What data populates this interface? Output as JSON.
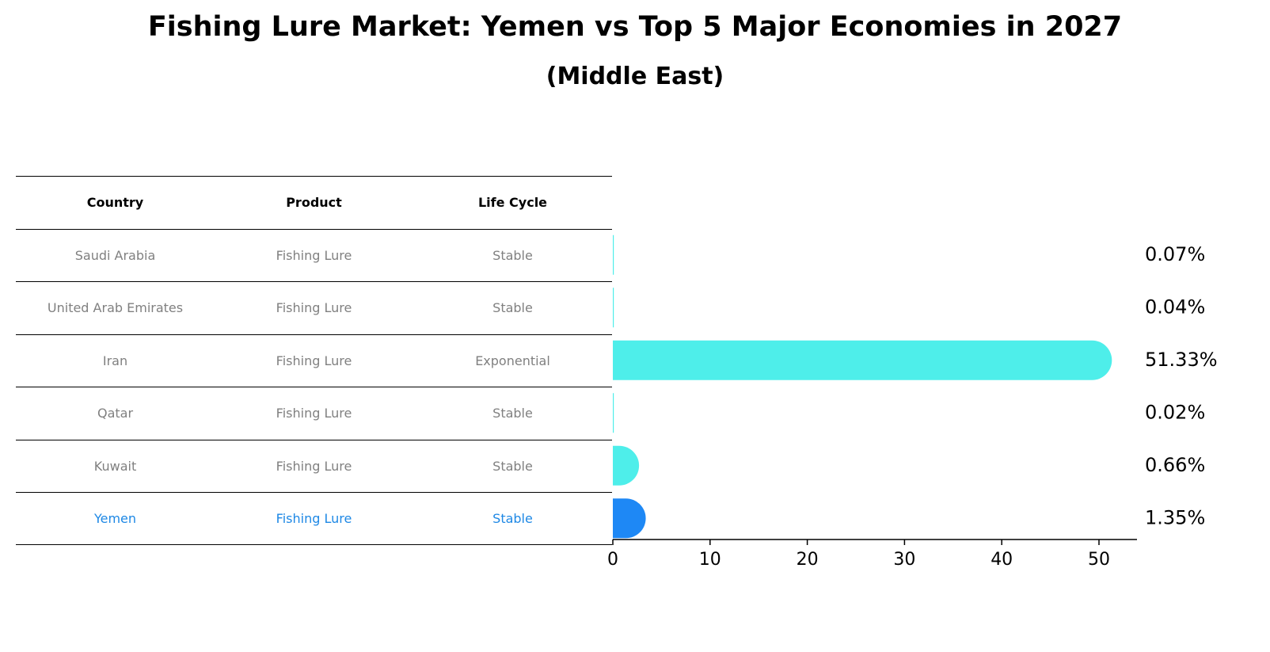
{
  "title": "Fishing Lure Market: Yemen vs Top 5 Major Economies in 2027",
  "subtitle": "(Middle East)",
  "table": {
    "headers": [
      "Country",
      "Product",
      "Life Cycle"
    ],
    "rows": [
      [
        "Saudi Arabia",
        "Fishing Lure",
        "Stable"
      ],
      [
        "United Arab Emirates",
        "Fishing Lure",
        "Stable"
      ],
      [
        "Iran",
        "Fishing Lure",
        "Exponential"
      ],
      [
        "Qatar",
        "Fishing Lure",
        "Stable"
      ],
      [
        "Kuwait",
        "Fishing Lure",
        "Stable"
      ],
      [
        "Yemen",
        "Fishing Lure",
        "Stable"
      ]
    ]
  },
  "chart_data": {
    "type": "bar",
    "orientation": "horizontal",
    "title": "Fishing Lure Market: Yemen vs Top 5 Major Economies in 2027",
    "subtitle": "(Middle East)",
    "categories": [
      "Saudi Arabia",
      "United Arab Emirates",
      "Iran",
      "Qatar",
      "Kuwait",
      "Yemen"
    ],
    "values": [
      0.07,
      0.04,
      51.33,
      0.02,
      0.66,
      1.35
    ],
    "value_labels": [
      "0.07%",
      "0.04%",
      "51.33%",
      "0.02%",
      "0.66%",
      "1.35%"
    ],
    "highlight": "Yemen",
    "xlim": [
      0,
      54
    ],
    "xticks": [
      0,
      10,
      20,
      30,
      40,
      50
    ],
    "xlabel": "",
    "ylabel": "",
    "colors": {
      "default": "#4eeeea",
      "highlight": "#1e88f5"
    }
  }
}
